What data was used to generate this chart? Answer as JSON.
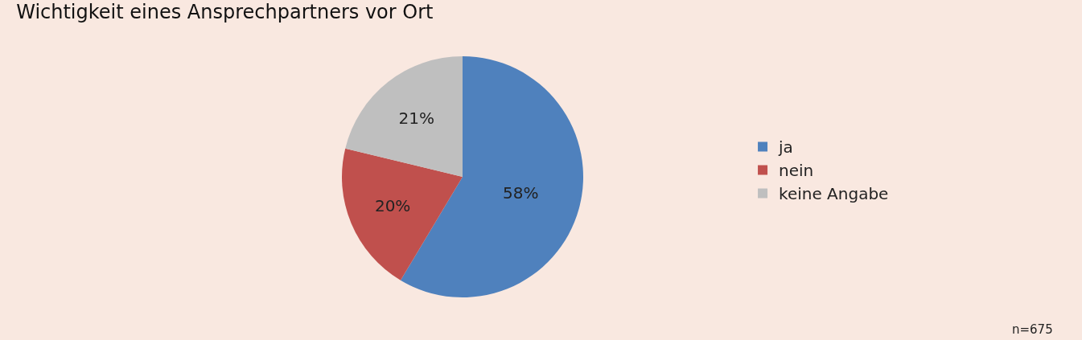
{
  "chart_data": {
    "type": "pie",
    "title": "Wichtigkeit eines Ansprechpartners vor Ort",
    "categories": [
      "ja",
      "nein",
      "keine Angabe"
    ],
    "values": [
      58,
      20,
      21
    ],
    "colors": [
      "#4f81bd",
      "#c0504d",
      "#bfbfbf"
    ],
    "value_labels": [
      "58%",
      "20%",
      "21%"
    ],
    "legend": "right",
    "annotations": [
      "n=675"
    ]
  }
}
